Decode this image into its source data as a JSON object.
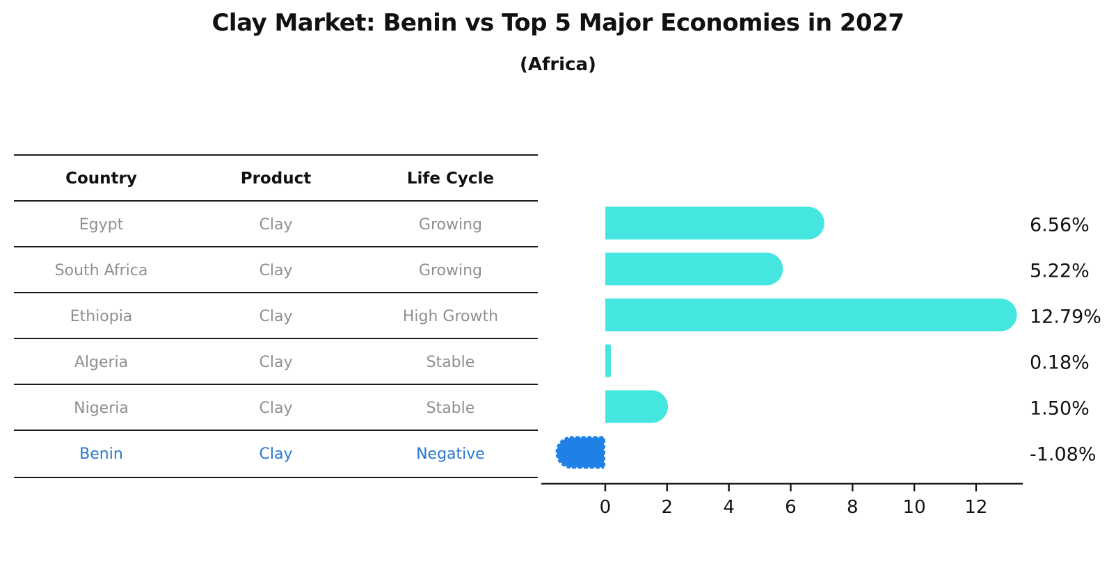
{
  "title": "Clay Market: Benin vs Top 5 Major Economies in 2027",
  "subtitle": "(Africa)",
  "table": {
    "headers": [
      "Country",
      "Product",
      "Life Cycle"
    ],
    "rows": [
      {
        "country": "Egypt",
        "product": "Clay",
        "life_cycle": "Growing",
        "highlight": false
      },
      {
        "country": "South Africa",
        "product": "Clay",
        "life_cycle": "Growing",
        "highlight": false
      },
      {
        "country": "Ethiopia",
        "product": "Clay",
        "life_cycle": "High Growth",
        "highlight": false
      },
      {
        "country": "Algeria",
        "product": "Clay",
        "life_cycle": "Stable",
        "highlight": false
      },
      {
        "country": "Nigeria",
        "product": "Clay",
        "life_cycle": "Stable",
        "highlight": false
      },
      {
        "country": "Benin",
        "product": "Clay",
        "life_cycle": "Negative",
        "highlight": true
      }
    ]
  },
  "chart_data": {
    "type": "bar",
    "orientation": "horizontal",
    "title": "Clay Market: Benin vs Top 5 Major Economies in 2027",
    "subtitle": "(Africa)",
    "categories": [
      "Egypt",
      "South Africa",
      "Ethiopia",
      "Algeria",
      "Nigeria",
      "Benin"
    ],
    "values": [
      6.56,
      5.22,
      12.79,
      0.18,
      1.5,
      -1.08
    ],
    "value_labels": [
      "6.56%",
      "5.22%",
      "12.79%",
      "0.18%",
      "1.50%",
      "-1.08%"
    ],
    "x_ticks": [
      "0",
      "2",
      "4",
      "6",
      "8",
      "10",
      "12"
    ],
    "x_tick_values": [
      0,
      2,
      4,
      6,
      8,
      10,
      12
    ],
    "xlim": [
      -2.07,
      13.51
    ],
    "grid": false,
    "legend": false,
    "highlight_index": 5,
    "bar_color": "#45E6E0",
    "highlight_bar_color": "#1F80E5",
    "highlight_text_color": "#2878D0",
    "row_text_color": "#8F8F8F",
    "axis_color": "#1A1A1A",
    "label_color": "#111111"
  }
}
